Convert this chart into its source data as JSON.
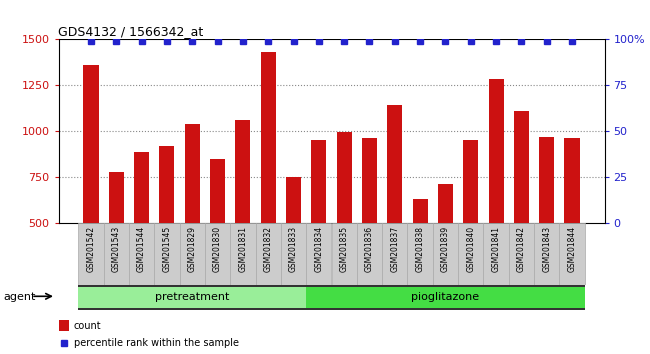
{
  "title": "GDS4132 / 1566342_at",
  "categories": [
    "GSM201542",
    "GSM201543",
    "GSM201544",
    "GSM201545",
    "GSM201829",
    "GSM201830",
    "GSM201831",
    "GSM201832",
    "GSM201833",
    "GSM201834",
    "GSM201835",
    "GSM201836",
    "GSM201837",
    "GSM201838",
    "GSM201839",
    "GSM201840",
    "GSM201841",
    "GSM201842",
    "GSM201843",
    "GSM201844"
  ],
  "bar_values": [
    1360,
    775,
    885,
    920,
    1040,
    850,
    1060,
    1430,
    750,
    950,
    995,
    960,
    1140,
    630,
    710,
    950,
    1280,
    1110,
    970,
    960
  ],
  "percentile_values": [
    99,
    99,
    99,
    99,
    99,
    99,
    99,
    99,
    99,
    99,
    99,
    99,
    99,
    99,
    99,
    99,
    99,
    99,
    99,
    99
  ],
  "bar_color": "#cc1111",
  "percentile_color": "#2222cc",
  "ylim_left": [
    500,
    1500
  ],
  "ylim_right": [
    0,
    100
  ],
  "yticks_left": [
    500,
    750,
    1000,
    1250,
    1500
  ],
  "yticks_right": [
    0,
    25,
    50,
    75,
    100
  ],
  "yticklabels_right": [
    "0",
    "25",
    "50",
    "75",
    "100%"
  ],
  "pretreatment_indices": [
    0,
    1,
    2,
    3,
    4,
    5,
    6,
    7,
    8
  ],
  "pioglitazone_indices": [
    9,
    10,
    11,
    12,
    13,
    14,
    15,
    16,
    17,
    18,
    19
  ],
  "pretreatment_label": "pretreatment",
  "pioglitazone_label": "pioglitazone",
  "agent_label": "agent",
  "legend_count_label": "count",
  "legend_percentile_label": "percentile rank within the sample",
  "plot_bg_color": "#ffffff",
  "pretreatment_color": "#99ee99",
  "pioglitazone_color": "#44dd44",
  "dotted_line_color": "#888888"
}
